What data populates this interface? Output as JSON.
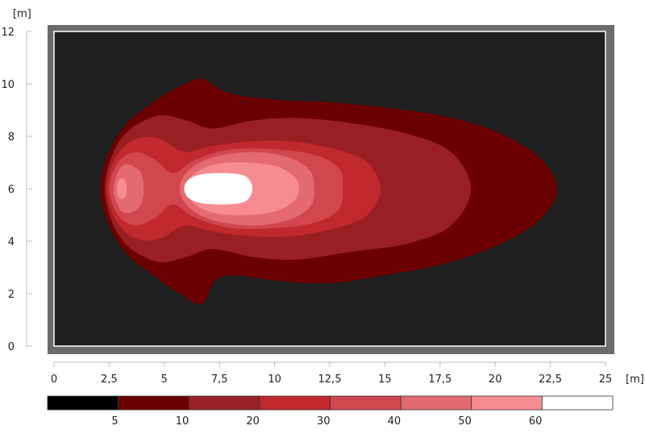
{
  "chart_data": {
    "type": "heatmap",
    "xlabel": "[m]",
    "ylabel": "[m]",
    "xlim": [
      0,
      25
    ],
    "ylim": [
      0,
      12
    ],
    "x_ticks": [
      "0",
      "2,5",
      "5",
      "7,5",
      "10",
      "12,5",
      "15",
      "17,5",
      "20",
      "22,5",
      "25"
    ],
    "x_tick_values": [
      0,
      2.5,
      5,
      7.5,
      10,
      12.5,
      15,
      17.5,
      20,
      22.5,
      25
    ],
    "y_ticks": [
      "0",
      "2",
      "4",
      "6",
      "8",
      "10",
      "12"
    ],
    "y_tick_values": [
      0,
      2,
      4,
      6,
      8,
      10,
      12
    ],
    "grid": false,
    "background_color": "#1f1f1f",
    "frame_color": "#6b6b6b",
    "legend": {
      "placement": "bottom",
      "thresholds": [
        "5",
        "10",
        "20",
        "30",
        "40",
        "50",
        "60"
      ],
      "colors": [
        "#000000",
        "#6b0000",
        "#9a1f22",
        "#c0292e",
        "#d2464d",
        "#e46a70",
        "#f68c8f",
        "#ffffff"
      ]
    },
    "contours": [
      {
        "level": "5",
        "color": "#6b0000",
        "points": [
          [
            2.1,
            6
          ],
          [
            2.4,
            7.2
          ],
          [
            3.2,
            8.4
          ],
          [
            4.5,
            9.3
          ],
          [
            5.7,
            9.9
          ],
          [
            6.7,
            10.2
          ],
          [
            7.3,
            9.9
          ],
          [
            8.2,
            9.6
          ],
          [
            10,
            9.4
          ],
          [
            12.5,
            9.3
          ],
          [
            15,
            9.1
          ],
          [
            17.5,
            8.8
          ],
          [
            20,
            8.2
          ],
          [
            22,
            7.2
          ],
          [
            22.8,
            6
          ],
          [
            22,
            4.8
          ],
          [
            20,
            3.8
          ],
          [
            17.5,
            3.1
          ],
          [
            15,
            2.7
          ],
          [
            12.5,
            2.4
          ],
          [
            10,
            2.5
          ],
          [
            8.2,
            2.7
          ],
          [
            7.3,
            2.5
          ],
          [
            6.7,
            1.6
          ],
          [
            5.7,
            2
          ],
          [
            4.5,
            2.7
          ],
          [
            3.2,
            3.6
          ],
          [
            2.4,
            4.8
          ]
        ]
      },
      {
        "level": "10",
        "color": "#9a1f22",
        "points": [
          [
            2.3,
            6
          ],
          [
            2.7,
            7.4
          ],
          [
            3.5,
            8.3
          ],
          [
            4.8,
            8.8
          ],
          [
            6,
            8.6
          ],
          [
            7.2,
            8.3
          ],
          [
            9,
            8.6
          ],
          [
            11,
            8.7
          ],
          [
            13.5,
            8.5
          ],
          [
            16,
            8.1
          ],
          [
            18,
            7.4
          ],
          [
            18.9,
            6
          ],
          [
            18,
            4.6
          ],
          [
            16,
            3.9
          ],
          [
            13.5,
            3.6
          ],
          [
            11,
            3.3
          ],
          [
            9,
            3.4
          ],
          [
            7.2,
            3.7
          ],
          [
            6,
            3.4
          ],
          [
            4.8,
            3.2
          ],
          [
            3.5,
            3.7
          ],
          [
            2.7,
            4.6
          ]
        ]
      },
      {
        "level": "20",
        "color": "#c0292e",
        "points": [
          [
            2.4,
            6
          ],
          [
            2.8,
            7.2
          ],
          [
            3.7,
            7.9
          ],
          [
            4.8,
            7.9
          ],
          [
            5.9,
            7.4
          ],
          [
            7,
            7.6
          ],
          [
            8.8,
            7.8
          ],
          [
            10.8,
            7.8
          ],
          [
            12.8,
            7.5
          ],
          [
            14.2,
            7
          ],
          [
            14.8,
            6
          ],
          [
            14.2,
            5
          ],
          [
            12.8,
            4.5
          ],
          [
            10.8,
            4.2
          ],
          [
            8.8,
            4.2
          ],
          [
            7,
            4.4
          ],
          [
            5.9,
            4.6
          ],
          [
            4.8,
            4.1
          ],
          [
            3.7,
            4.1
          ],
          [
            2.8,
            4.8
          ]
        ]
      },
      {
        "level": "30",
        "color": "#d2464d",
        "points": [
          [
            2.5,
            6
          ],
          [
            2.9,
            7
          ],
          [
            3.7,
            7.4
          ],
          [
            4.6,
            7.1
          ],
          [
            5.4,
            6.6
          ],
          [
            6.4,
            7.1
          ],
          [
            8,
            7.5
          ],
          [
            10,
            7.5
          ],
          [
            11.8,
            7.3
          ],
          [
            12.9,
            6.8
          ],
          [
            13.1,
            6
          ],
          [
            12.9,
            5.2
          ],
          [
            11.8,
            4.7
          ],
          [
            10,
            4.5
          ],
          [
            8,
            4.5
          ],
          [
            6.4,
            4.9
          ],
          [
            5.4,
            5.4
          ],
          [
            4.6,
            4.9
          ],
          [
            3.7,
            4.6
          ],
          [
            2.9,
            5
          ]
        ]
      },
      {
        "level": "40",
        "color": "#e46a70",
        "points": [
          [
            2.7,
            6
          ],
          [
            3,
            6.8
          ],
          [
            3.5,
            6.9
          ],
          [
            4,
            6.5
          ],
          [
            4,
            5.5
          ],
          [
            3.5,
            5.1
          ],
          [
            3,
            5.2
          ]
        ]
      },
      {
        "level": "40",
        "color": "#e46a70",
        "points": [
          [
            5.7,
            6
          ],
          [
            6.1,
            6.7
          ],
          [
            7.2,
            7.2
          ],
          [
            9,
            7.4
          ],
          [
            10.6,
            7.2
          ],
          [
            11.6,
            6.7
          ],
          [
            11.8,
            6
          ],
          [
            11.6,
            5.3
          ],
          [
            10.6,
            4.8
          ],
          [
            9,
            4.6
          ],
          [
            7.2,
            4.8
          ],
          [
            6.1,
            5.3
          ]
        ]
      },
      {
        "level": "50",
        "color": "#f68c8f",
        "points": [
          [
            2.85,
            6
          ],
          [
            2.95,
            6.35
          ],
          [
            3.2,
            6.35
          ],
          [
            3.3,
            6
          ],
          [
            3.2,
            5.65
          ],
          [
            2.95,
            5.65
          ]
        ]
      },
      {
        "level": "50",
        "color": "#f68c8f",
        "points": [
          [
            6,
            6
          ],
          [
            6.4,
            6.6
          ],
          [
            7.4,
            6.95
          ],
          [
            8.8,
            7
          ],
          [
            10.1,
            6.85
          ],
          [
            10.9,
            6.45
          ],
          [
            11.1,
            6
          ],
          [
            10.9,
            5.55
          ],
          [
            10.1,
            5.15
          ],
          [
            8.8,
            5
          ],
          [
            7.4,
            5.05
          ],
          [
            6.4,
            5.4
          ]
        ]
      },
      {
        "level": "60",
        "color": "#ffffff",
        "points": [
          [
            5.9,
            6
          ],
          [
            6.1,
            6.35
          ],
          [
            6.7,
            6.55
          ],
          [
            7.6,
            6.6
          ],
          [
            8.4,
            6.55
          ],
          [
            8.8,
            6.4
          ],
          [
            9,
            6
          ],
          [
            8.8,
            5.6
          ],
          [
            8.4,
            5.45
          ],
          [
            7.6,
            5.4
          ],
          [
            6.7,
            5.45
          ],
          [
            6.1,
            5.65
          ]
        ]
      }
    ]
  }
}
